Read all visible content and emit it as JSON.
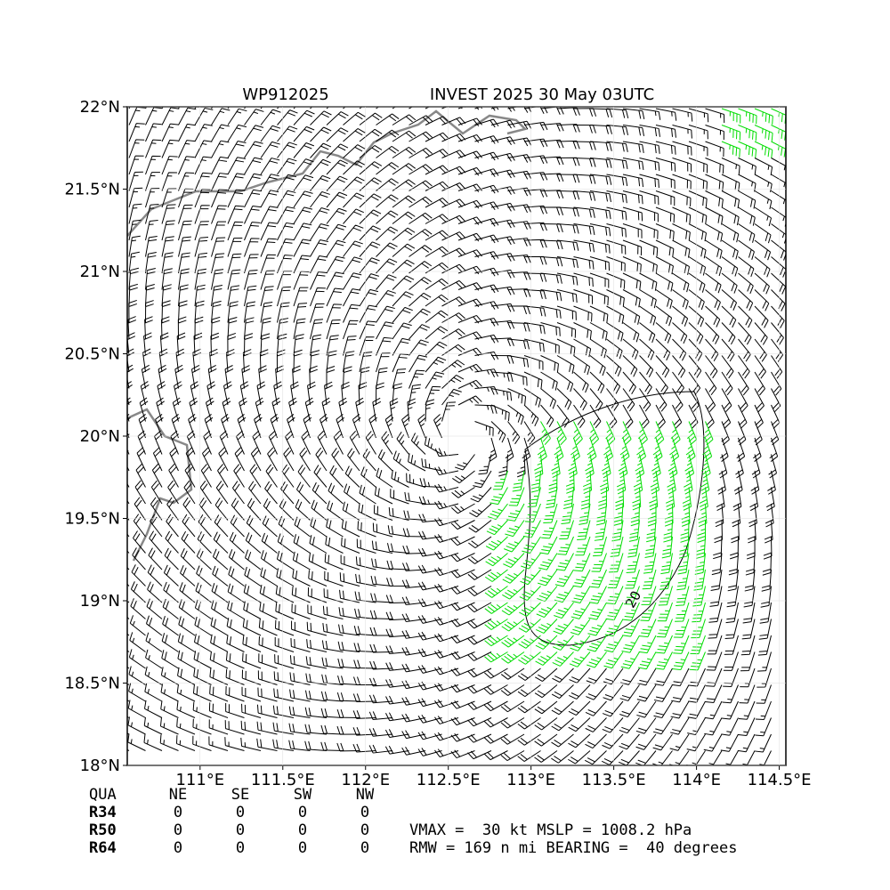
{
  "map": {
    "title_left": "WP912025",
    "title_right": "INVEST 2025 30 May 03UTC",
    "xlim": [
      110.56,
      114.54
    ],
    "ylim": [
      18,
      22
    ],
    "xticks": [
      {
        "value": 111,
        "label": "111°E"
      },
      {
        "value": 111.5,
        "label": "111.5°E"
      },
      {
        "value": 112,
        "label": "112°E"
      },
      {
        "value": 112.5,
        "label": "112.5°E"
      },
      {
        "value": 113,
        "label": "113°E"
      },
      {
        "value": 113.5,
        "label": "113.5°E"
      },
      {
        "value": 114,
        "label": "114°E"
      },
      {
        "value": 114.5,
        "label": "114.5°E"
      }
    ],
    "yticks": [
      {
        "value": 18,
        "label": "18°N"
      },
      {
        "value": 18.5,
        "label": "18.5°N"
      },
      {
        "value": 19,
        "label": "19°N"
      },
      {
        "value": 19.5,
        "label": "19.5°N"
      },
      {
        "value": 20,
        "label": "20°N"
      },
      {
        "value": 20.5,
        "label": "20.5°N"
      },
      {
        "value": 21,
        "label": "21°N"
      },
      {
        "value": 21.5,
        "label": "21.5°N"
      },
      {
        "value": 22,
        "label": "22°N"
      }
    ],
    "contour_label": "20",
    "table": [
      [
        "QUA",
        "NE",
        "SE",
        "SW",
        "NW"
      ],
      [
        "R34",
        "0",
        "0",
        "0",
        "0"
      ],
      [
        "R50",
        "0",
        "0",
        "0",
        "0"
      ],
      [
        "R64",
        "0",
        "0",
        "0",
        "0"
      ]
    ],
    "info": [
      "VMAX =  30 kt MSLP = 1008.2 hPa",
      "RMW = 169 n mi BEARING =  40 degrees"
    ]
  }
}
